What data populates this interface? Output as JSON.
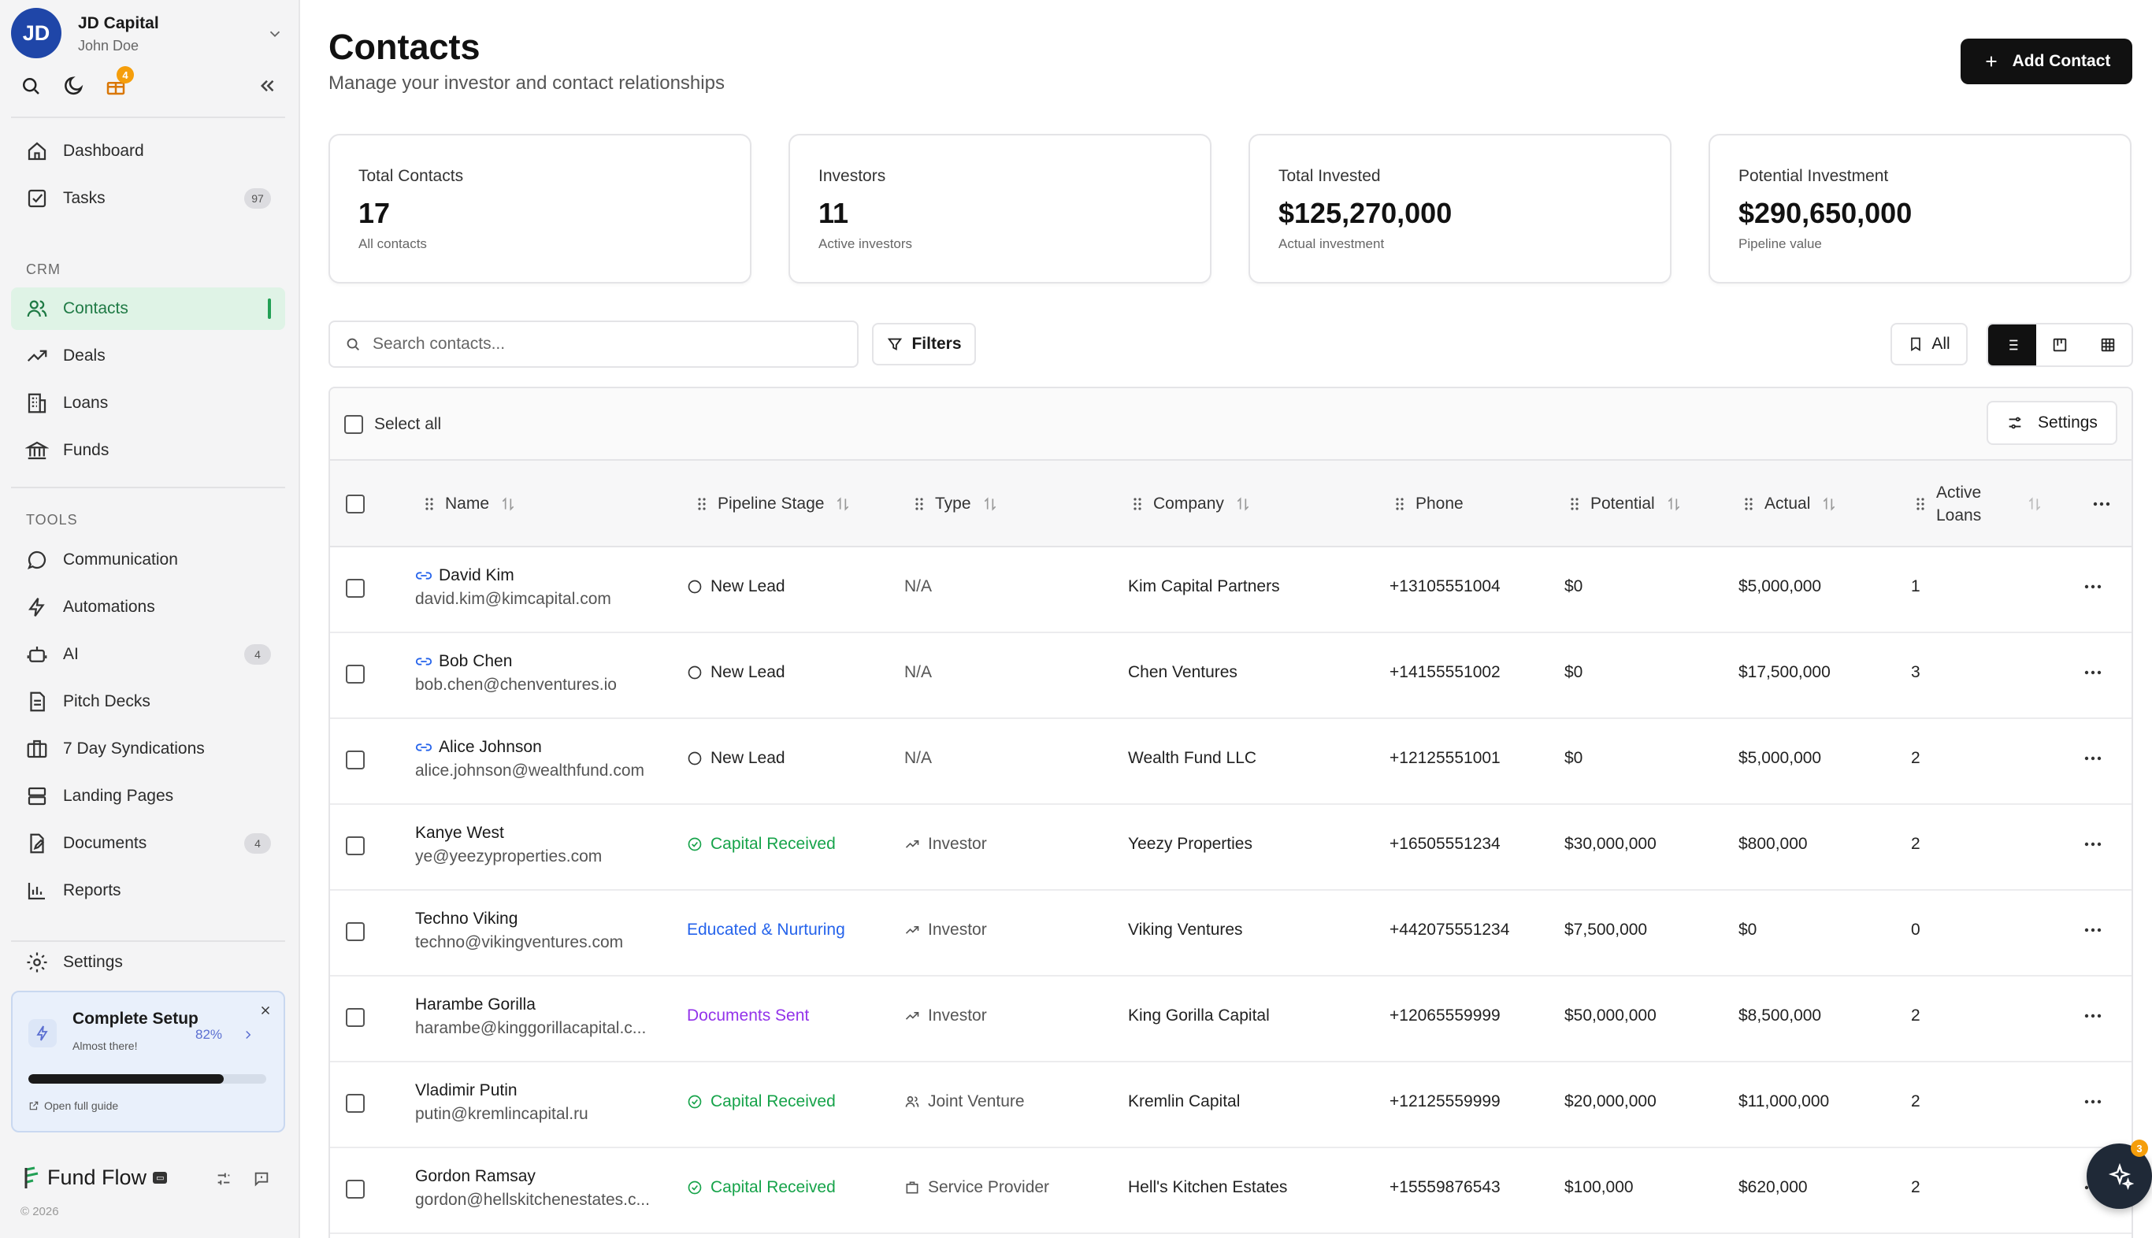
{
  "workspace": {
    "initials": "JD",
    "name": "JD Capital",
    "user": "John Doe",
    "gift_badge": "4"
  },
  "nav": {
    "top": [
      {
        "key": "dashboard",
        "label": "Dashboard",
        "icon": "home-icon"
      },
      {
        "key": "tasks",
        "label": "Tasks",
        "icon": "checkbox-icon",
        "count": "97"
      }
    ],
    "crm_label": "CRM",
    "crm": [
      {
        "key": "contacts",
        "label": "Contacts",
        "icon": "users-icon",
        "active": true
      },
      {
        "key": "deals",
        "label": "Deals",
        "icon": "trending-icon"
      },
      {
        "key": "loans",
        "label": "Loans",
        "icon": "building-icon"
      },
      {
        "key": "funds",
        "label": "Funds",
        "icon": "bank-icon"
      }
    ],
    "tools_label": "TOOLS",
    "tools": [
      {
        "key": "communication",
        "label": "Communication",
        "icon": "chat-icon"
      },
      {
        "key": "automations",
        "label": "Automations",
        "icon": "bolt-icon"
      },
      {
        "key": "ai",
        "label": "AI",
        "icon": "robot-icon",
        "count": "4"
      },
      {
        "key": "pitch-decks",
        "label": "Pitch Decks",
        "icon": "document-icon"
      },
      {
        "key": "syndications",
        "label": "7 Day Syndications",
        "icon": "briefcase-icon"
      },
      {
        "key": "landing-pages",
        "label": "Landing Pages",
        "icon": "layout-icon"
      },
      {
        "key": "documents",
        "label": "Documents",
        "icon": "file-edit-icon",
        "count": "4"
      },
      {
        "key": "reports",
        "label": "Reports",
        "icon": "bar-chart-icon"
      }
    ],
    "settings": {
      "label": "Settings",
      "icon": "gear-icon"
    }
  },
  "setup": {
    "title": "Complete Setup",
    "subtitle": "Almost there!",
    "percent_label": "82%",
    "progress": 0.82,
    "guide": "Open full guide"
  },
  "brand": {
    "name": "Fund Flow",
    "tag": "▭",
    "copyright": "© 2026"
  },
  "header": {
    "title": "Contacts",
    "subtitle": "Manage your investor and contact relationships",
    "add_label": "Add Contact"
  },
  "stats": [
    {
      "label": "Total Contacts",
      "value": "17",
      "sub": "All contacts"
    },
    {
      "label": "Investors",
      "value": "11",
      "sub": "Active investors"
    },
    {
      "label": "Total Invested",
      "value": "$125,270,000",
      "sub": "Actual investment"
    },
    {
      "label": "Potential Investment",
      "value": "$290,650,000",
      "sub": "Pipeline value"
    }
  ],
  "toolbar": {
    "search_placeholder": "Search contacts...",
    "filters_label": "Filters",
    "all_label": "All"
  },
  "table": {
    "select_all": "Select all",
    "settings_label": "Settings",
    "columns": {
      "name": "Name",
      "stage": "Pipeline Stage",
      "type": "Type",
      "company": "Company",
      "phone": "Phone",
      "potential": "Potential",
      "actual": "Actual",
      "loans_1": "Active",
      "loans_2": "Loans"
    },
    "rows": [
      {
        "name": "David Kim",
        "email": "david.kim@kimcapital.com",
        "linked": true,
        "stage": "New Lead",
        "stage_kind": "new",
        "type": "N/A",
        "type_icon": "",
        "company": "Kim Capital Partners",
        "phone": "+13105551004",
        "potential": "$0",
        "actual": "$5,000,000",
        "loans": "1"
      },
      {
        "name": "Bob Chen",
        "email": "bob.chen@chenventures.io",
        "linked": true,
        "stage": "New Lead",
        "stage_kind": "new",
        "type": "N/A",
        "type_icon": "",
        "company": "Chen Ventures",
        "phone": "+14155551002",
        "potential": "$0",
        "actual": "$17,500,000",
        "loans": "3"
      },
      {
        "name": "Alice Johnson",
        "email": "alice.johnson@wealthfund.com",
        "linked": true,
        "stage": "New Lead",
        "stage_kind": "new",
        "type": "N/A",
        "type_icon": "",
        "company": "Wealth Fund LLC",
        "phone": "+12125551001",
        "potential": "$0",
        "actual": "$5,000,000",
        "loans": "2"
      },
      {
        "name": "Kanye West",
        "email": "ye@yeezyproperties.com",
        "linked": false,
        "stage": "Capital Received",
        "stage_kind": "received",
        "type": "Investor",
        "type_icon": "trending",
        "company": "Yeezy Properties",
        "phone": "+16505551234",
        "potential": "$30,000,000",
        "actual": "$800,000",
        "loans": "2"
      },
      {
        "name": "Techno Viking",
        "email": "techno@vikingventures.com",
        "linked": false,
        "stage": "Educated & Nurturing",
        "stage_kind": "nurturing",
        "type": "Investor",
        "type_icon": "trending",
        "company": "Viking Ventures",
        "phone": "+442075551234",
        "potential": "$7,500,000",
        "actual": "$0",
        "loans": "0"
      },
      {
        "name": "Harambe Gorilla",
        "email": "harambe@kinggorillacapital.c...",
        "linked": false,
        "stage": "Documents Sent",
        "stage_kind": "docs",
        "type": "Investor",
        "type_icon": "trending",
        "company": "King Gorilla Capital",
        "phone": "+12065559999",
        "potential": "$50,000,000",
        "actual": "$8,500,000",
        "loans": "2"
      },
      {
        "name": "Vladimir Putin",
        "email": "putin@kremlincapital.ru",
        "linked": false,
        "stage": "Capital Received",
        "stage_kind": "received",
        "type": "Joint Venture",
        "type_icon": "users",
        "company": "Kremlin Capital",
        "phone": "+12125559999",
        "potential": "$20,000,000",
        "actual": "$11,000,000",
        "loans": "2"
      },
      {
        "name": "Gordon Ramsay",
        "email": "gordon@hellskitchenestates.c...",
        "linked": false,
        "stage": "Capital Received",
        "stage_kind": "received",
        "type": "Service Provider",
        "type_icon": "building",
        "company": "Hell's Kitchen Estates",
        "phone": "+15559876543",
        "potential": "$100,000",
        "actual": "$620,000",
        "loans": "2"
      }
    ]
  },
  "assistant": {
    "badge": "3"
  },
  "colors": {
    "active_green": "#22a055",
    "received": "#16a34a",
    "nurturing": "#2563eb",
    "docs": "#9333ea"
  }
}
